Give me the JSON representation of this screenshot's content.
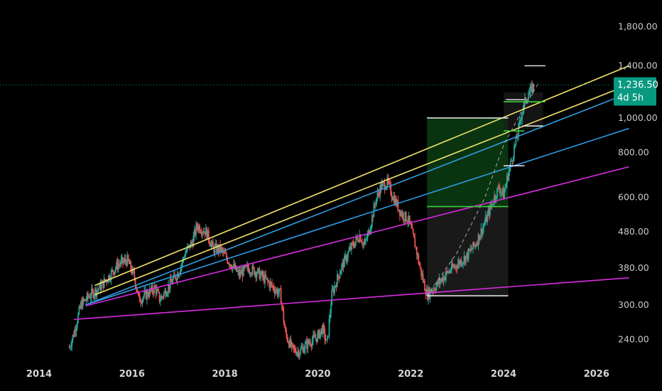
{
  "chart_data": {
    "type": "candlestick",
    "y_scale": "log",
    "ylim": [
      218,
      1800
    ],
    "xlim": [
      2014.0,
      2026.4
    ],
    "x_ticks": [
      "2014",
      "2016",
      "2018",
      "2020",
      "2022",
      "2024",
      "2026"
    ],
    "y_ticks": [
      "1,800.00",
      "1,400.00",
      "1,000.00",
      "800.00",
      "600.00",
      "480.00",
      "380.00",
      "300.00",
      "240.00"
    ],
    "current_price": {
      "value": 1236.5,
      "label": "1,236.50",
      "countdown": "4d 5h",
      "color": "#089981"
    },
    "price_path": [
      [
        2014.65,
        228
      ],
      [
        2014.75,
        250
      ],
      [
        2014.9,
        300
      ],
      [
        2015.1,
        320
      ],
      [
        2015.3,
        335
      ],
      [
        2015.5,
        360
      ],
      [
        2015.7,
        390
      ],
      [
        2015.9,
        400
      ],
      [
        2016.05,
        360
      ],
      [
        2016.15,
        310
      ],
      [
        2016.3,
        320
      ],
      [
        2016.5,
        335
      ],
      [
        2016.6,
        310
      ],
      [
        2016.8,
        340
      ],
      [
        2017.0,
        370
      ],
      [
        2017.15,
        420
      ],
      [
        2017.3,
        450
      ],
      [
        2017.4,
        500
      ],
      [
        2017.6,
        480
      ],
      [
        2017.75,
        430
      ],
      [
        2017.9,
        430
      ],
      [
        2018.1,
        395
      ],
      [
        2018.3,
        365
      ],
      [
        2018.5,
        380
      ],
      [
        2018.7,
        370
      ],
      [
        2018.9,
        350
      ],
      [
        2019.0,
        340
      ],
      [
        2019.2,
        320
      ],
      [
        2019.3,
        250
      ],
      [
        2019.45,
        225
      ],
      [
        2019.6,
        222
      ],
      [
        2019.8,
        235
      ],
      [
        2020.0,
        245
      ],
      [
        2020.1,
        258
      ],
      [
        2020.2,
        232
      ],
      [
        2020.3,
        320
      ],
      [
        2020.5,
        380
      ],
      [
        2020.7,
        430
      ],
      [
        2020.9,
        470
      ],
      [
        2021.0,
        440
      ],
      [
        2021.1,
        480
      ],
      [
        2021.25,
        590
      ],
      [
        2021.35,
        640
      ],
      [
        2021.5,
        660
      ],
      [
        2021.6,
        610
      ],
      [
        2021.8,
        540
      ],
      [
        2021.95,
        520
      ],
      [
        2022.1,
        440
      ],
      [
        2022.2,
        380
      ],
      [
        2022.35,
        320
      ],
      [
        2022.55,
        340
      ],
      [
        2022.8,
        370
      ],
      [
        2023.0,
        390
      ],
      [
        2023.2,
        410
      ],
      [
        2023.4,
        445
      ],
      [
        2023.6,
        510
      ],
      [
        2023.8,
        600
      ],
      [
        2023.9,
        640
      ],
      [
        2024.0,
        610
      ],
      [
        2024.1,
        700
      ],
      [
        2024.2,
        790
      ],
      [
        2024.3,
        900
      ],
      [
        2024.4,
        1050
      ],
      [
        2024.5,
        1150
      ],
      [
        2024.6,
        1200
      ],
      [
        2024.65,
        1236.5
      ]
    ],
    "trend_lines": [
      {
        "color": "#f3e36a",
        "points": [
          [
            2015.2,
            340
          ],
          [
            2026.7,
            1400
          ]
        ]
      },
      {
        "color": "#f3e36a",
        "points": [
          [
            2015.2,
            320
          ],
          [
            2026.7,
            1240
          ]
        ]
      },
      {
        "color": "#2f9be0",
        "points": [
          [
            2015.0,
            300
          ],
          [
            2026.7,
            1175
          ]
        ]
      },
      {
        "color": "#2f9be0",
        "points": [
          [
            2015.0,
            300
          ],
          [
            2026.7,
            935
          ]
        ]
      },
      {
        "color": "#d92be0",
        "points": [
          [
            2015.0,
            298
          ],
          [
            2026.7,
            730
          ]
        ]
      },
      {
        "color": "#d92be0",
        "points": [
          [
            2014.75,
            273
          ],
          [
            2026.7,
            357
          ]
        ]
      }
    ],
    "range_boxes": [
      {
        "x": [
          2022.35,
          2024.1
        ],
        "y": [
          318,
          1000
        ],
        "fill_upper": "#0a3d12",
        "split": 565,
        "fill_lower": "#2a2a2a"
      },
      {
        "x": [
          2024.0,
          2024.85
        ],
        "y": [
          930,
          1180
        ],
        "fill": "#1c1c1c"
      }
    ],
    "level_lines": [
      {
        "x": [
          2022.35,
          2024.1
        ],
        "y": 318,
        "color": "#e0e0e0"
      },
      {
        "x": [
          2022.35,
          2024.1
        ],
        "y": 1000,
        "color": "#e0e0e0"
      },
      {
        "x": [
          2022.35,
          2024.1
        ],
        "y": 565,
        "color": "#3ad23a"
      },
      {
        "x": [
          2024.0,
          2024.45
        ],
        "y": 735,
        "color": "#e0e0e0"
      },
      {
        "x": [
          2024.0,
          2024.45
        ],
        "y": 920,
        "color": "#3ad23a"
      },
      {
        "x": [
          2024.0,
          2024.9
        ],
        "y": 1110,
        "color": "#3ad23a"
      },
      {
        "x": [
          2024.05,
          2024.45
        ],
        "y": 1125,
        "color": "#e0e0e0"
      },
      {
        "x": [
          2024.4,
          2024.85
        ],
        "y": 950,
        "color": "#e0e0e0"
      },
      {
        "x": [
          2024.45,
          2024.9
        ],
        "y": 1400,
        "color": "#e0e0e0"
      }
    ],
    "dashed_path": [
      [
        2022.35,
        318
      ],
      [
        2023.0,
        420
      ],
      [
        2023.6,
        600
      ],
      [
        2024.0,
        840
      ],
      [
        2024.4,
        1050
      ],
      [
        2024.75,
        1250
      ]
    ]
  }
}
